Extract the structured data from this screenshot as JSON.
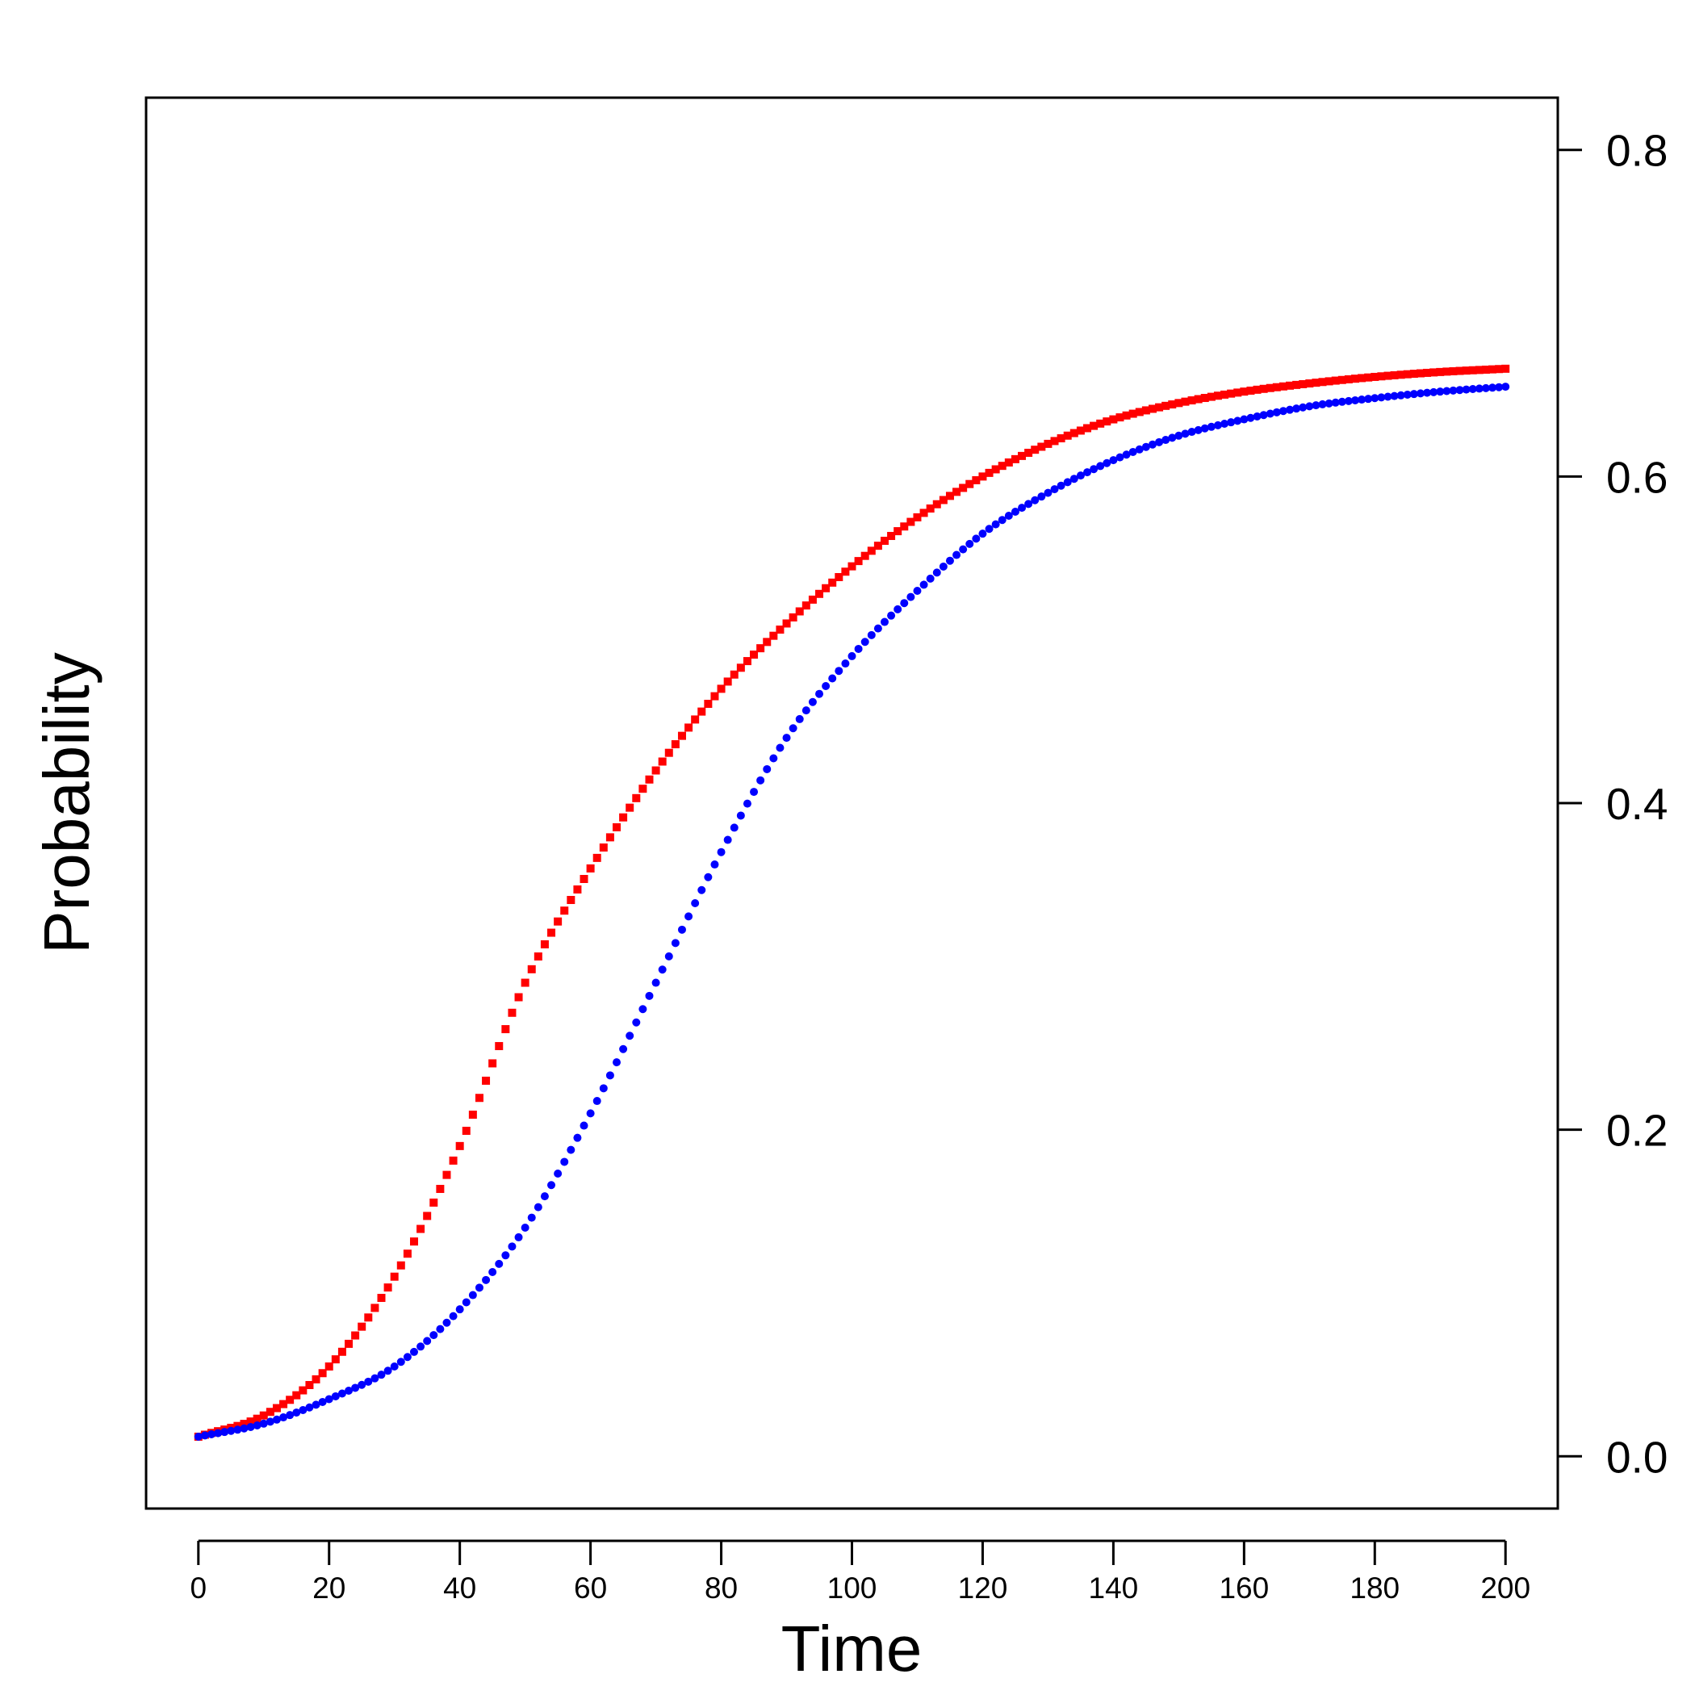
{
  "chart_data": {
    "type": "scatter",
    "title": "",
    "xlabel": "Time",
    "ylabel": "Probability",
    "xlim": [
      -8,
      208
    ],
    "ylim": [
      -0.032,
      0.832
    ],
    "x_ticks": [
      0,
      20,
      40,
      60,
      80,
      100,
      120,
      140,
      160,
      180,
      200
    ],
    "x_tick_labels": [
      "0",
      "20",
      "40",
      "60",
      "80",
      "100",
      "120",
      "140",
      "160",
      "180",
      "200"
    ],
    "y_ticks": [
      0.0,
      0.2,
      0.4,
      0.6,
      0.8
    ],
    "y_tick_labels": [
      "0.0",
      "0.2",
      "0.4",
      "0.6",
      "0.8"
    ],
    "y_axis_side": "right",
    "grid": false,
    "series": [
      {
        "name": "red squares",
        "color": "#ff0000",
        "marker": "square",
        "x": [
          0,
          10,
          20,
          30,
          40,
          50,
          60,
          70,
          80,
          90,
          100,
          110,
          120,
          130,
          140,
          150,
          160,
          170,
          180,
          190,
          200
        ],
        "y": [
          0.012,
          0.025,
          0.055,
          0.11,
          0.19,
          0.29,
          0.36,
          0.42,
          0.47,
          0.51,
          0.545,
          0.575,
          0.6,
          0.62,
          0.635,
          0.645,
          0.652,
          0.657,
          0.661,
          0.664,
          0.666
        ]
      },
      {
        "name": "blue circles",
        "color": "#0000ff",
        "marker": "circle",
        "x": [
          0,
          10,
          20,
          30,
          40,
          50,
          60,
          70,
          80,
          90,
          100,
          110,
          120,
          130,
          140,
          150,
          160,
          170,
          180,
          190,
          200
        ],
        "y": [
          0.012,
          0.02,
          0.035,
          0.055,
          0.09,
          0.14,
          0.21,
          0.29,
          0.37,
          0.44,
          0.49,
          0.53,
          0.565,
          0.59,
          0.61,
          0.625,
          0.635,
          0.643,
          0.648,
          0.652,
          0.655
        ]
      }
    ]
  }
}
